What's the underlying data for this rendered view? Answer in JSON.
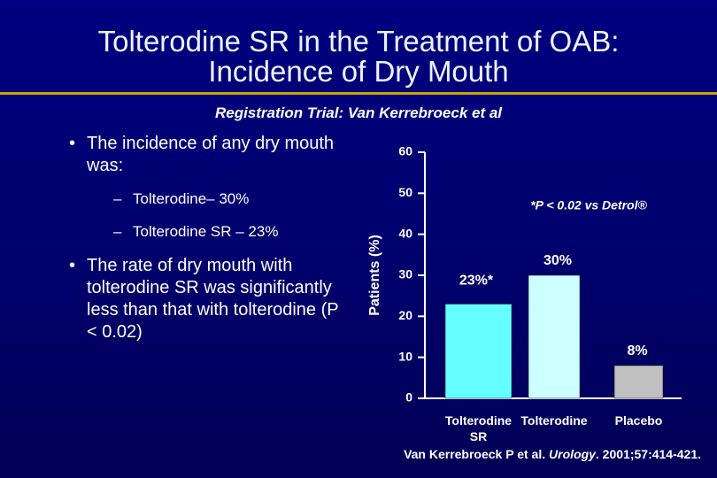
{
  "slide": {
    "title_lines": [
      "Tolterodine SR in the Treatment of OAB:",
      "Incidence of Dry Mouth"
    ],
    "subtitle": "Registration Trial: Van Kerrebroeck et al",
    "bullets": [
      {
        "text": "The incidence of any dry mouth was:",
        "sub": [
          "Tolterodine– 30%",
          "Tolterodine SR – 23%"
        ]
      },
      {
        "text": "The rate of dry mouth with tolterodine SR was significantly less than that with tolterodine (P < 0.02)",
        "sub": []
      }
    ],
    "source": [
      "Van Kerrebroeck P et al. ",
      "Urology",
      ". 2001;57:414-421."
    ]
  },
  "chart_data": {
    "type": "bar",
    "categories": [
      "Tolterodine SR",
      "Tolterodine",
      "Placebo"
    ],
    "values": [
      23,
      30,
      8
    ],
    "value_labels": [
      "23%*",
      "30%",
      "8%"
    ],
    "colors": [
      "#66ffff",
      "#ccffff",
      "#c0c0c0"
    ],
    "y_label": "Patients (%)",
    "annotation": "*P < 0.02 vs Detrol®",
    "ylim": [
      0,
      60
    ],
    "yticks": [
      0,
      10,
      20,
      30,
      40,
      50,
      60
    ],
    "grid": false
  }
}
